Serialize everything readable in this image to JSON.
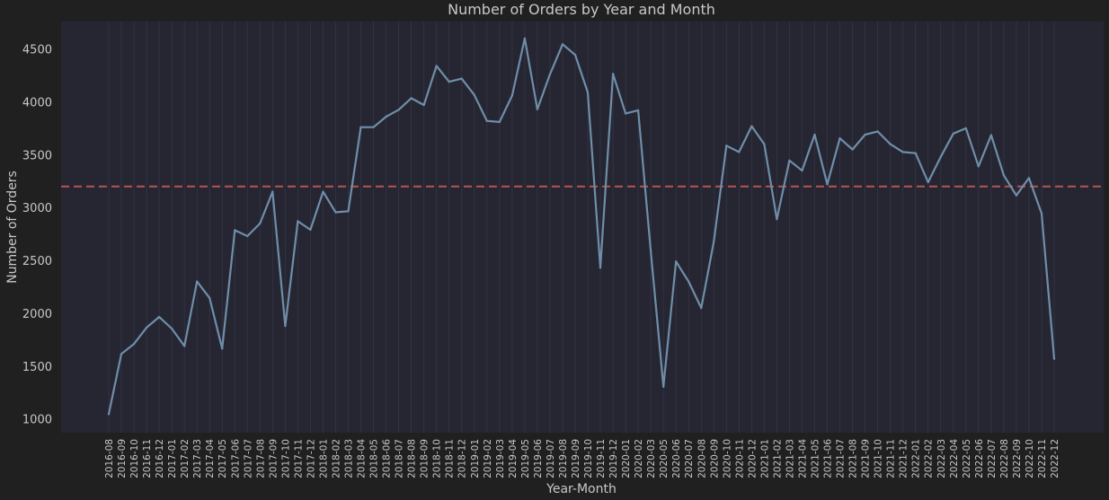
{
  "chart_data": {
    "type": "line",
    "title": "Number of Orders by Year and Month",
    "xlabel": "Year-Month",
    "ylabel": "Number of Orders",
    "ylim": [
      870,
      4760
    ],
    "yticks": [
      1000,
      1500,
      2000,
      2500,
      3000,
      3500,
      4000,
      4500
    ],
    "reference_line": {
      "value": 3200,
      "style": "dashed",
      "color": "#b55454"
    },
    "grid": "vertical",
    "colors": {
      "background": "#202020",
      "plot_area": "#262633",
      "line": "#6f8ea8",
      "text": "#c8c8c8",
      "grid": "#343445"
    },
    "categories": [
      "2016-08",
      "2016-09",
      "2016-10",
      "2016-11",
      "2016-12",
      "2017-01",
      "2017-02",
      "2017-03",
      "2017-04",
      "2017-05",
      "2017-06",
      "2017-07",
      "2017-08",
      "2017-09",
      "2017-10",
      "2017-11",
      "2017-12",
      "2018-01",
      "2018-02",
      "2018-03",
      "2018-04",
      "2018-05",
      "2018-06",
      "2018-07",
      "2018-08",
      "2018-09",
      "2018-10",
      "2018-11",
      "2018-12",
      "2019-01",
      "2019-02",
      "2019-03",
      "2019-04",
      "2019-05",
      "2019-06",
      "2019-07",
      "2019-08",
      "2019-09",
      "2019-10",
      "2019-11",
      "2019-12",
      "2020-01",
      "2020-02",
      "2020-03",
      "2020-05",
      "2020-06",
      "2020-07",
      "2020-08",
      "2020-09",
      "2020-10",
      "2020-11",
      "2020-12",
      "2021-01",
      "2021-02",
      "2021-03",
      "2021-04",
      "2021-05",
      "2021-06",
      "2021-07",
      "2021-08",
      "2021-09",
      "2021-10",
      "2021-11",
      "2021-12",
      "2022-01",
      "2022-02",
      "2022-03",
      "2022-04",
      "2022-05",
      "2022-06",
      "2022-07",
      "2022-08",
      "2022-09",
      "2022-10",
      "2022-11",
      "2022-12"
    ],
    "series": [
      {
        "name": "Number of Orders",
        "values": [
          1045,
          1615,
          1710,
          1865,
          1965,
          1855,
          1690,
          2300,
          2145,
          1665,
          2785,
          2730,
          2850,
          3150,
          1880,
          2870,
          2790,
          3150,
          2955,
          2965,
          3760,
          3760,
          3860,
          3925,
          4035,
          3970,
          4340,
          4190,
          4220,
          4065,
          3820,
          3810,
          4060,
          4600,
          3930,
          4260,
          4545,
          4445,
          4090,
          2430,
          4265,
          3890,
          3920,
          2590,
          1305,
          2490,
          2300,
          2050,
          2680,
          3585,
          3525,
          3770,
          3600,
          2890,
          3445,
          3350,
          3690,
          3220,
          3655,
          3550,
          3690,
          3720,
          3600,
          3525,
          3515,
          3240,
          3480,
          3700,
          3750,
          3390,
          3685,
          3305,
          3115,
          3280,
          2945,
          1570
        ]
      }
    ]
  }
}
